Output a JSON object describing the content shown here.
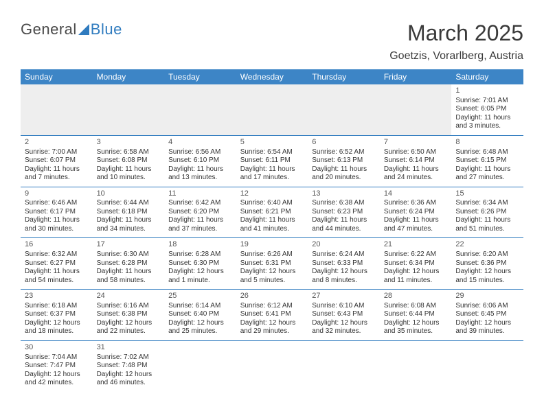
{
  "logo": {
    "text1": "General",
    "text2": "Blue"
  },
  "title": "March 2025",
  "location": "Goetzis, Vorarlberg, Austria",
  "headerColor": "#3d85c6",
  "borderColor": "#2f7bbf",
  "days": [
    "Sunday",
    "Monday",
    "Tuesday",
    "Wednesday",
    "Thursday",
    "Friday",
    "Saturday"
  ],
  "weeks": [
    [
      null,
      null,
      null,
      null,
      null,
      null,
      {
        "n": "1",
        "sr": "Sunrise: 7:01 AM",
        "ss": "Sunset: 6:05 PM",
        "dl1": "Daylight: 11 hours",
        "dl2": "and 3 minutes."
      }
    ],
    [
      {
        "n": "2",
        "sr": "Sunrise: 7:00 AM",
        "ss": "Sunset: 6:07 PM",
        "dl1": "Daylight: 11 hours",
        "dl2": "and 7 minutes."
      },
      {
        "n": "3",
        "sr": "Sunrise: 6:58 AM",
        "ss": "Sunset: 6:08 PM",
        "dl1": "Daylight: 11 hours",
        "dl2": "and 10 minutes."
      },
      {
        "n": "4",
        "sr": "Sunrise: 6:56 AM",
        "ss": "Sunset: 6:10 PM",
        "dl1": "Daylight: 11 hours",
        "dl2": "and 13 minutes."
      },
      {
        "n": "5",
        "sr": "Sunrise: 6:54 AM",
        "ss": "Sunset: 6:11 PM",
        "dl1": "Daylight: 11 hours",
        "dl2": "and 17 minutes."
      },
      {
        "n": "6",
        "sr": "Sunrise: 6:52 AM",
        "ss": "Sunset: 6:13 PM",
        "dl1": "Daylight: 11 hours",
        "dl2": "and 20 minutes."
      },
      {
        "n": "7",
        "sr": "Sunrise: 6:50 AM",
        "ss": "Sunset: 6:14 PM",
        "dl1": "Daylight: 11 hours",
        "dl2": "and 24 minutes."
      },
      {
        "n": "8",
        "sr": "Sunrise: 6:48 AM",
        "ss": "Sunset: 6:15 PM",
        "dl1": "Daylight: 11 hours",
        "dl2": "and 27 minutes."
      }
    ],
    [
      {
        "n": "9",
        "sr": "Sunrise: 6:46 AM",
        "ss": "Sunset: 6:17 PM",
        "dl1": "Daylight: 11 hours",
        "dl2": "and 30 minutes."
      },
      {
        "n": "10",
        "sr": "Sunrise: 6:44 AM",
        "ss": "Sunset: 6:18 PM",
        "dl1": "Daylight: 11 hours",
        "dl2": "and 34 minutes."
      },
      {
        "n": "11",
        "sr": "Sunrise: 6:42 AM",
        "ss": "Sunset: 6:20 PM",
        "dl1": "Daylight: 11 hours",
        "dl2": "and 37 minutes."
      },
      {
        "n": "12",
        "sr": "Sunrise: 6:40 AM",
        "ss": "Sunset: 6:21 PM",
        "dl1": "Daylight: 11 hours",
        "dl2": "and 41 minutes."
      },
      {
        "n": "13",
        "sr": "Sunrise: 6:38 AM",
        "ss": "Sunset: 6:23 PM",
        "dl1": "Daylight: 11 hours",
        "dl2": "and 44 minutes."
      },
      {
        "n": "14",
        "sr": "Sunrise: 6:36 AM",
        "ss": "Sunset: 6:24 PM",
        "dl1": "Daylight: 11 hours",
        "dl2": "and 47 minutes."
      },
      {
        "n": "15",
        "sr": "Sunrise: 6:34 AM",
        "ss": "Sunset: 6:26 PM",
        "dl1": "Daylight: 11 hours",
        "dl2": "and 51 minutes."
      }
    ],
    [
      {
        "n": "16",
        "sr": "Sunrise: 6:32 AM",
        "ss": "Sunset: 6:27 PM",
        "dl1": "Daylight: 11 hours",
        "dl2": "and 54 minutes."
      },
      {
        "n": "17",
        "sr": "Sunrise: 6:30 AM",
        "ss": "Sunset: 6:28 PM",
        "dl1": "Daylight: 11 hours",
        "dl2": "and 58 minutes."
      },
      {
        "n": "18",
        "sr": "Sunrise: 6:28 AM",
        "ss": "Sunset: 6:30 PM",
        "dl1": "Daylight: 12 hours",
        "dl2": "and 1 minute."
      },
      {
        "n": "19",
        "sr": "Sunrise: 6:26 AM",
        "ss": "Sunset: 6:31 PM",
        "dl1": "Daylight: 12 hours",
        "dl2": "and 5 minutes."
      },
      {
        "n": "20",
        "sr": "Sunrise: 6:24 AM",
        "ss": "Sunset: 6:33 PM",
        "dl1": "Daylight: 12 hours",
        "dl2": "and 8 minutes."
      },
      {
        "n": "21",
        "sr": "Sunrise: 6:22 AM",
        "ss": "Sunset: 6:34 PM",
        "dl1": "Daylight: 12 hours",
        "dl2": "and 11 minutes."
      },
      {
        "n": "22",
        "sr": "Sunrise: 6:20 AM",
        "ss": "Sunset: 6:36 PM",
        "dl1": "Daylight: 12 hours",
        "dl2": "and 15 minutes."
      }
    ],
    [
      {
        "n": "23",
        "sr": "Sunrise: 6:18 AM",
        "ss": "Sunset: 6:37 PM",
        "dl1": "Daylight: 12 hours",
        "dl2": "and 18 minutes."
      },
      {
        "n": "24",
        "sr": "Sunrise: 6:16 AM",
        "ss": "Sunset: 6:38 PM",
        "dl1": "Daylight: 12 hours",
        "dl2": "and 22 minutes."
      },
      {
        "n": "25",
        "sr": "Sunrise: 6:14 AM",
        "ss": "Sunset: 6:40 PM",
        "dl1": "Daylight: 12 hours",
        "dl2": "and 25 minutes."
      },
      {
        "n": "26",
        "sr": "Sunrise: 6:12 AM",
        "ss": "Sunset: 6:41 PM",
        "dl1": "Daylight: 12 hours",
        "dl2": "and 29 minutes."
      },
      {
        "n": "27",
        "sr": "Sunrise: 6:10 AM",
        "ss": "Sunset: 6:43 PM",
        "dl1": "Daylight: 12 hours",
        "dl2": "and 32 minutes."
      },
      {
        "n": "28",
        "sr": "Sunrise: 6:08 AM",
        "ss": "Sunset: 6:44 PM",
        "dl1": "Daylight: 12 hours",
        "dl2": "and 35 minutes."
      },
      {
        "n": "29",
        "sr": "Sunrise: 6:06 AM",
        "ss": "Sunset: 6:45 PM",
        "dl1": "Daylight: 12 hours",
        "dl2": "and 39 minutes."
      }
    ],
    [
      {
        "n": "30",
        "sr": "Sunrise: 7:04 AM",
        "ss": "Sunset: 7:47 PM",
        "dl1": "Daylight: 12 hours",
        "dl2": "and 42 minutes."
      },
      {
        "n": "31",
        "sr": "Sunrise: 7:02 AM",
        "ss": "Sunset: 7:48 PM",
        "dl1": "Daylight: 12 hours",
        "dl2": "and 46 minutes."
      },
      null,
      null,
      null,
      null,
      null
    ]
  ]
}
